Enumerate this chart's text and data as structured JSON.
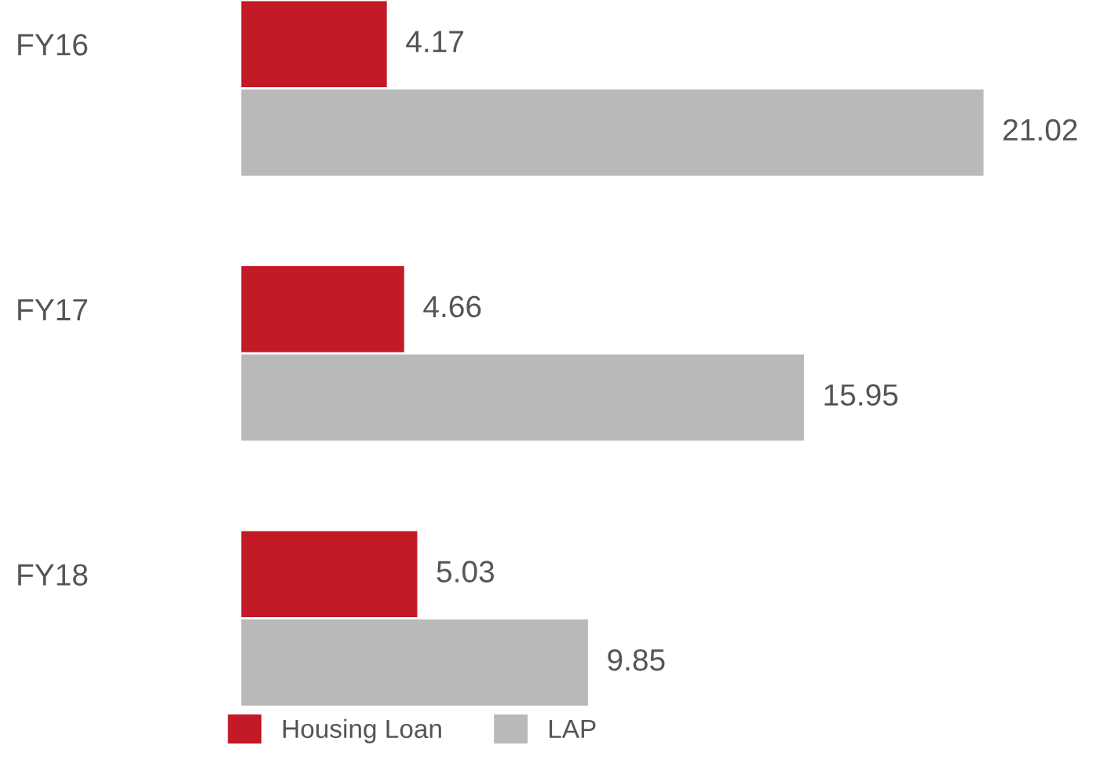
{
  "chart_data": {
    "type": "bar",
    "orientation": "horizontal",
    "categories": [
      "FY16",
      "FY17",
      "FY18"
    ],
    "series": [
      {
        "name": "Housing Loan",
        "color": "#c21a26",
        "values": [
          4.17,
          4.66,
          5.03
        ]
      },
      {
        "name": "LAP",
        "color": "#b9b9b9",
        "values": [
          21.02,
          15.95,
          9.85
        ]
      }
    ],
    "data_labels": true,
    "legend": "bottom",
    "tick_labels": "y"
  }
}
